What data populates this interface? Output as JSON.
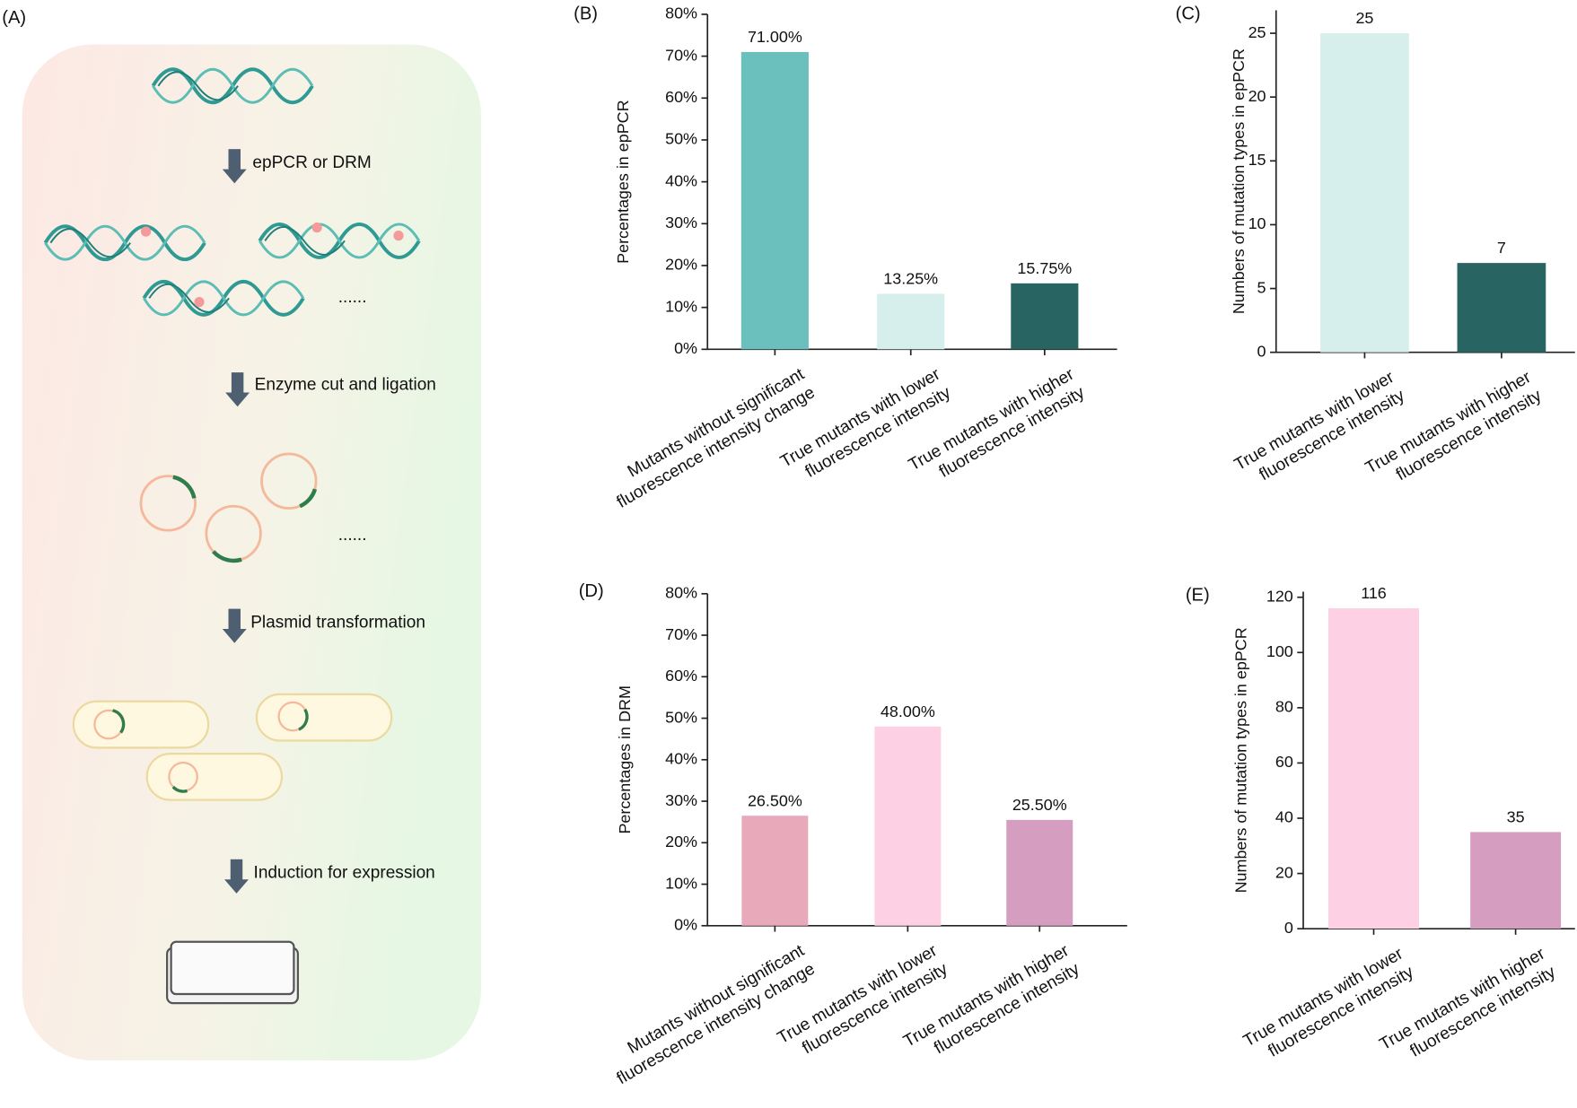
{
  "panel_a": {
    "label": "(A)",
    "steps": [
      "epPCR or DRM",
      "Enzyme cut and ligation",
      "Plasmid transformation",
      "Induction for expression"
    ],
    "ellipsis": [
      "......",
      "......"
    ]
  },
  "chart_data": [
    {
      "type": "bar",
      "panel_label": "(B)",
      "y_label": "Percentages in epPCR",
      "categories": [
        [
          "Mutants without significant",
          "fluorescence intensity change"
        ],
        [
          "True mutants with lower",
          "fluorescence intensity"
        ],
        [
          "True mutants with higher",
          "fluorescence intensity"
        ]
      ],
      "values": [
        71,
        13.25,
        15.75
      ],
      "value_labels": [
        "71.00%",
        "13.25%",
        "15.75%"
      ],
      "colors": [
        "#6bbfbc",
        "#d6eeec",
        "#286462"
      ],
      "ylim": [
        0,
        80
      ],
      "yticks": [
        {
          "value": 0,
          "label": "0%"
        },
        {
          "value": 10,
          "label": "10%"
        },
        {
          "value": 20,
          "label": "20%"
        },
        {
          "value": 30,
          "label": "30%"
        },
        {
          "value": 40,
          "label": "40%"
        },
        {
          "value": 50,
          "label": "50%"
        },
        {
          "value": 60,
          "label": "60%"
        },
        {
          "value": 70,
          "label": "70%"
        },
        {
          "value": 80,
          "label": "80%"
        }
      ]
    },
    {
      "type": "bar",
      "panel_label": "(C)",
      "y_label": "Numbers of mutation types in epPCR",
      "categories": [
        [
          "True mutants with lower",
          "fluorescence intensity"
        ],
        [
          "True mutants with higher",
          "fluorescence intensity"
        ]
      ],
      "values": [
        25,
        7
      ],
      "colors": [
        "#d6eeec",
        "#286462"
      ],
      "ylim": [
        0,
        26.8
      ],
      "yticks": [
        0,
        5,
        10,
        15,
        20,
        25
      ]
    },
    {
      "type": "bar",
      "panel_label": "(D)",
      "y_label": "Percentages in DRM",
      "categories": [
        [
          "Mutants without significant",
          "fluorescence intensity change"
        ],
        [
          "True mutants with lower",
          "fluorescence intensity"
        ],
        [
          "True mutants with higher",
          "fluorescence intensity"
        ]
      ],
      "values": [
        26.5,
        48,
        25.5
      ],
      "value_labels": [
        "26.50%",
        "48.00%",
        "25.50%"
      ],
      "colors": [
        "#e8a9bb",
        "#fdd1e3",
        "#d59ec0"
      ],
      "ylim": [
        0,
        80
      ],
      "yticks": [
        {
          "value": 0,
          "label": "0%"
        },
        {
          "value": 10,
          "label": "10%"
        },
        {
          "value": 20,
          "label": "20%"
        },
        {
          "value": 30,
          "label": "30%"
        },
        {
          "value": 40,
          "label": "40%"
        },
        {
          "value": 50,
          "label": "50%"
        },
        {
          "value": 60,
          "label": "60%"
        },
        {
          "value": 70,
          "label": "70%"
        },
        {
          "value": 80,
          "label": "80%"
        }
      ]
    },
    {
      "type": "bar",
      "panel_label": "(E)",
      "y_label": "Numbers of mutation types in epPCR",
      "categories": [
        [
          "True mutants with lower",
          "fluorescence intensity"
        ],
        [
          "True mutants with higher",
          "fluorescence intensity"
        ]
      ],
      "values": [
        116,
        35
      ],
      "colors": [
        "#fdd1e3",
        "#d59ec0"
      ],
      "ylim": [
        0,
        122
      ],
      "yticks": [
        0,
        20,
        40,
        60,
        80,
        100,
        120
      ]
    }
  ]
}
